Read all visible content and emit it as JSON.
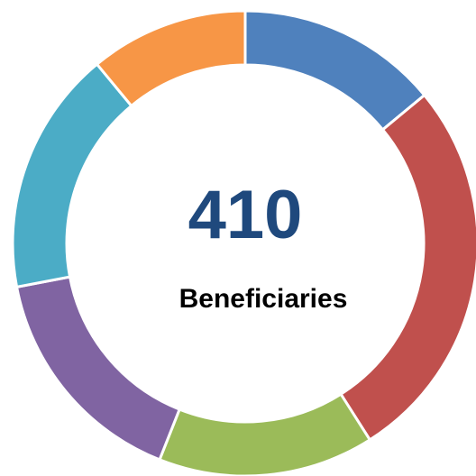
{
  "chart_data": {
    "type": "donut",
    "values": [
      14,
      27,
      15,
      16,
      17,
      11
    ],
    "colors": [
      "#4f81bd",
      "#c0504d",
      "#9bbb59",
      "#8064a2",
      "#4bacc6",
      "#f79646"
    ],
    "total": 410,
    "label": "Beneficiaries"
  }
}
